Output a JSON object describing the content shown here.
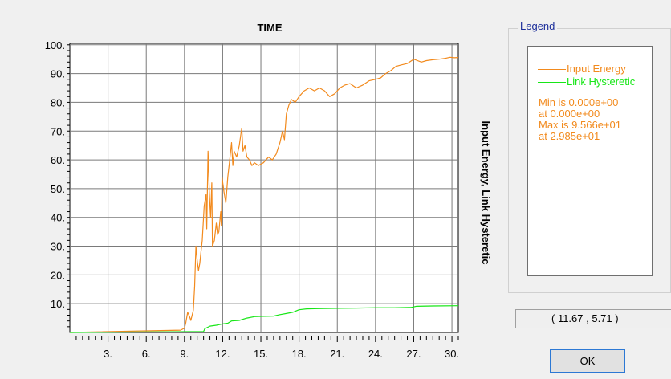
{
  "chart_data": {
    "type": "line",
    "title": "TIME",
    "xlabel": "",
    "ylabel": "Input Energy, Link Hysteretic",
    "xlim": [
      0,
      30.5
    ],
    "ylim": [
      0,
      100.5
    ],
    "x_ticks": [
      3,
      6,
      9,
      12,
      15,
      18,
      21,
      24,
      27,
      30
    ],
    "x_tick_labels": [
      "3.",
      "6.",
      "9.",
      "12.",
      "15.",
      "18.",
      "21.",
      "24.",
      "27.",
      "30."
    ],
    "y_ticks": [
      10,
      20,
      30,
      40,
      50,
      60,
      70,
      80,
      90,
      100
    ],
    "y_tick_labels": [
      "10.",
      "20.",
      "30.",
      "40.",
      "50.",
      "60.",
      "70.",
      "80.",
      "90.",
      "100."
    ],
    "grid": true,
    "legend_position": "right",
    "series": [
      {
        "name": "Input Energy",
        "color": "#f28a1d",
        "points": [
          [
            0,
            0
          ],
          [
            8.7,
            0.8
          ],
          [
            9.0,
            1.5
          ],
          [
            9.1,
            3.2
          ],
          [
            9.25,
            7.0
          ],
          [
            9.4,
            5.5
          ],
          [
            9.5,
            4.2
          ],
          [
            9.7,
            7.8
          ],
          [
            9.8,
            16.0
          ],
          [
            9.9,
            30.0
          ],
          [
            10.0,
            25.0
          ],
          [
            10.1,
            21.5
          ],
          [
            10.2,
            24.0
          ],
          [
            10.3,
            28.0
          ],
          [
            10.4,
            32.0
          ],
          [
            10.55,
            44.0
          ],
          [
            10.7,
            48.0
          ],
          [
            10.75,
            36.0
          ],
          [
            10.85,
            63.0
          ],
          [
            10.95,
            49.0
          ],
          [
            11.0,
            44.0
          ],
          [
            11.05,
            40.0
          ],
          [
            11.15,
            52.0
          ],
          [
            11.2,
            30.0
          ],
          [
            11.35,
            32.0
          ],
          [
            11.5,
            38.0
          ],
          [
            11.6,
            34.0
          ],
          [
            11.7,
            35.0
          ],
          [
            11.85,
            42.0
          ],
          [
            11.9,
            37.0
          ],
          [
            11.95,
            54.0
          ],
          [
            12.1,
            49.0
          ],
          [
            12.25,
            45.0
          ],
          [
            12.4,
            54.0
          ],
          [
            12.55,
            60.0
          ],
          [
            12.7,
            66.0
          ],
          [
            12.8,
            58.0
          ],
          [
            12.9,
            63.0
          ],
          [
            13.1,
            61.0
          ],
          [
            13.3,
            65.0
          ],
          [
            13.5,
            71.0
          ],
          [
            13.6,
            63.0
          ],
          [
            13.75,
            65.0
          ],
          [
            13.9,
            61.0
          ],
          [
            14.1,
            60.0
          ],
          [
            14.3,
            58.0
          ],
          [
            14.5,
            59.0
          ],
          [
            14.8,
            58.0
          ],
          [
            15.2,
            59.0
          ],
          [
            15.6,
            61.0
          ],
          [
            15.9,
            60.0
          ],
          [
            16.2,
            62.0
          ],
          [
            16.5,
            66.0
          ],
          [
            16.7,
            70.0
          ],
          [
            16.85,
            67.0
          ],
          [
            17.0,
            76.0
          ],
          [
            17.2,
            79.0
          ],
          [
            17.4,
            81.0
          ],
          [
            17.7,
            80.0
          ],
          [
            18.0,
            82.0
          ],
          [
            18.4,
            84.0
          ],
          [
            18.8,
            85.0
          ],
          [
            19.2,
            84.0
          ],
          [
            19.6,
            85.0
          ],
          [
            20.0,
            84.0
          ],
          [
            20.4,
            82.0
          ],
          [
            20.8,
            83.0
          ],
          [
            21.2,
            85.0
          ],
          [
            21.6,
            86.0
          ],
          [
            22.0,
            86.5
          ],
          [
            22.5,
            85.0
          ],
          [
            23.0,
            86.0
          ],
          [
            23.5,
            87.5
          ],
          [
            24.0,
            88.0
          ],
          [
            24.4,
            88.5
          ],
          [
            24.8,
            90.0
          ],
          [
            25.2,
            91.0
          ],
          [
            25.6,
            92.5
          ],
          [
            26.0,
            93.0
          ],
          [
            26.5,
            93.5
          ],
          [
            27.0,
            95.0
          ],
          [
            27.3,
            94.5
          ],
          [
            27.6,
            94.0
          ],
          [
            28.0,
            94.5
          ],
          [
            28.5,
            94.8
          ],
          [
            29.0,
            95.0
          ],
          [
            29.5,
            95.3
          ],
          [
            29.85,
            95.66
          ],
          [
            30.2,
            95.5
          ],
          [
            30.5,
            95.6
          ]
        ]
      },
      {
        "name": "Link Hysteretic",
        "color": "#17e617",
        "points": [
          [
            0,
            0
          ],
          [
            10.5,
            0.3
          ],
          [
            10.6,
            1.3
          ],
          [
            11.0,
            2.2
          ],
          [
            11.5,
            2.5
          ],
          [
            12.0,
            3.0
          ],
          [
            12.4,
            3.2
          ],
          [
            12.7,
            4.0
          ],
          [
            13.3,
            4.2
          ],
          [
            13.9,
            5.0
          ],
          [
            14.5,
            5.5
          ],
          [
            15.2,
            5.6
          ],
          [
            16.0,
            5.7
          ],
          [
            16.5,
            6.2
          ],
          [
            17.0,
            6.6
          ],
          [
            17.5,
            7.0
          ],
          [
            18.0,
            7.9
          ],
          [
            18.6,
            8.2
          ],
          [
            19.5,
            8.3
          ],
          [
            21.0,
            8.4
          ],
          [
            22.5,
            8.5
          ],
          [
            24.0,
            8.6
          ],
          [
            25.5,
            8.6
          ],
          [
            26.8,
            8.7
          ],
          [
            27.2,
            9.1
          ],
          [
            28.5,
            9.2
          ],
          [
            30.5,
            9.3
          ]
        ]
      }
    ]
  },
  "legend": {
    "title": "Legend",
    "entries": [
      {
        "label": "Input Energy",
        "color": "#f28a1d"
      },
      {
        "label": "Link Hysteretic",
        "color": "#17e617"
      }
    ],
    "stats": [
      "Min is 0.000e+00",
      "at 0.000e+00",
      "Max is 9.566e+01",
      "at 2.985e+01"
    ]
  },
  "coordinate_readout": "( 11.67 , 5.71 )",
  "ok_label": "OK"
}
